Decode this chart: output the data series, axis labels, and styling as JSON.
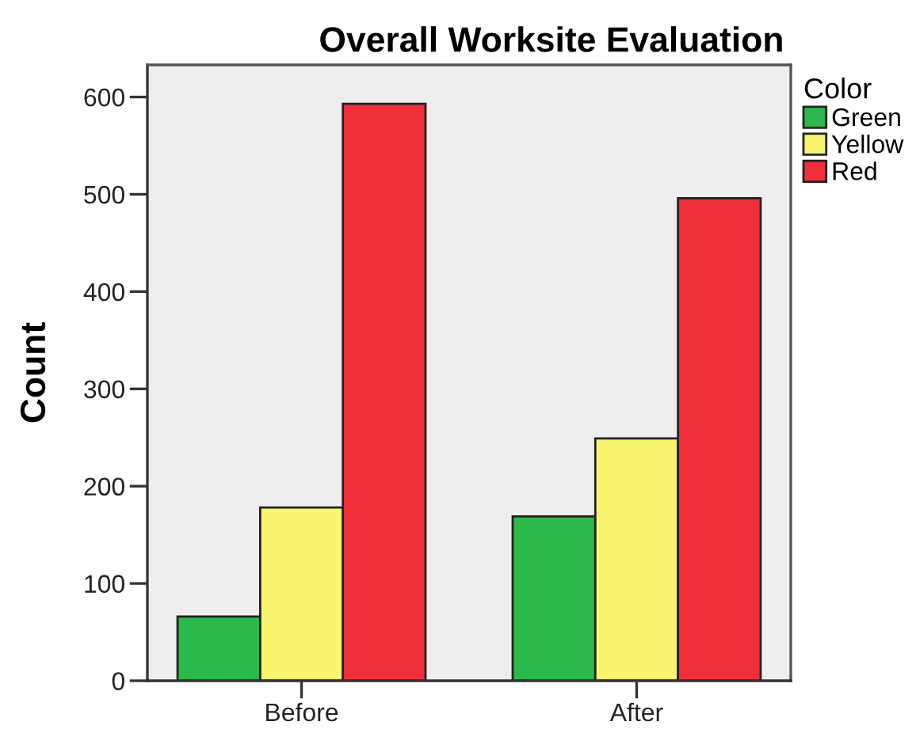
{
  "chart_data": {
    "type": "bar",
    "title": "Overall Worksite Evaluation",
    "ylabel": "Count",
    "legend_title": "Color",
    "categories": [
      "Before",
      "After"
    ],
    "series": [
      {
        "name": "Green",
        "color": "#2db84b",
        "values": [
          66,
          169
        ]
      },
      {
        "name": "Yellow",
        "color": "#f9f56e",
        "values": [
          178,
          249
        ]
      },
      {
        "name": "Red",
        "color": "#ef2f39",
        "values": [
          593,
          496
        ]
      }
    ],
    "ylim": [
      0,
      633
    ],
    "yticks": [
      0,
      100,
      200,
      300,
      400,
      500,
      600
    ],
    "grid": false,
    "legend": "right"
  }
}
